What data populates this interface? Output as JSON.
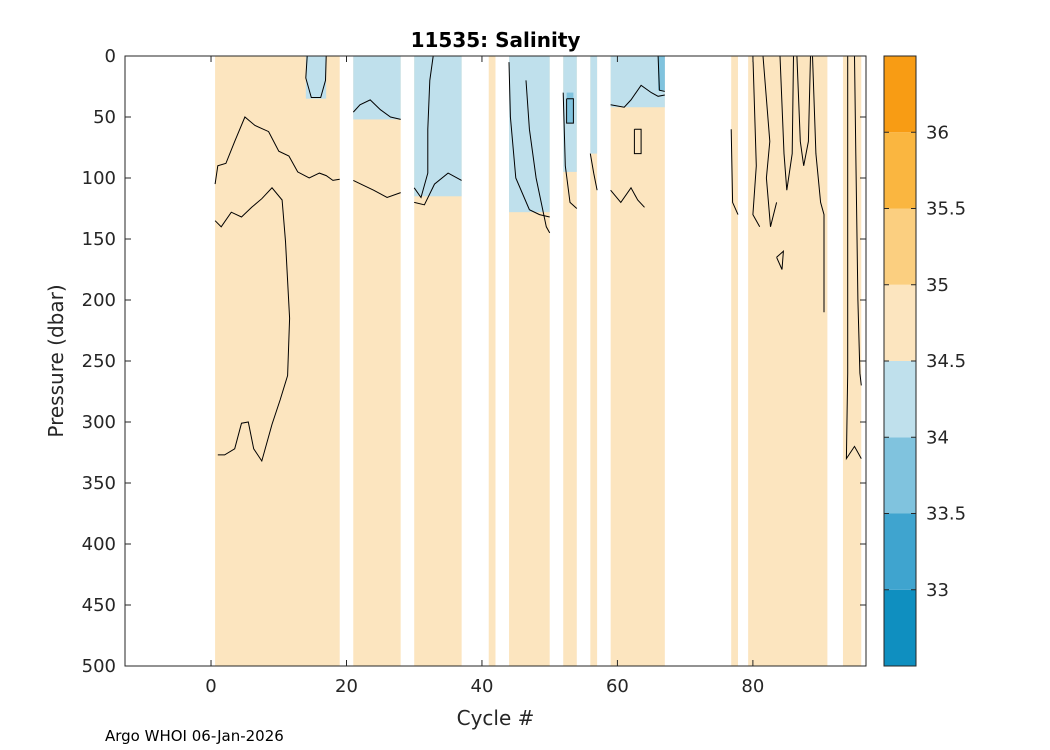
{
  "chart_data": {
    "type": "heatmap",
    "title": "11535:  Salinity",
    "xlabel": "Cycle #",
    "ylabel": "Pressure (dbar)",
    "xlim": [
      -12.7,
      96.7
    ],
    "ylim": [
      0,
      500
    ],
    "y_reversed": true,
    "xticks": [
      0,
      20,
      40,
      60,
      80
    ],
    "yticks": [
      0,
      50,
      100,
      150,
      200,
      250,
      300,
      350,
      400,
      450,
      500
    ],
    "footer": "Argo WHOI 06-Jan-2026",
    "colorbar": {
      "range": [
        32.5,
        36.5
      ],
      "ticks": [
        33,
        33.5,
        34,
        34.5,
        35,
        35.5,
        36
      ],
      "levels": [
        {
          "from": 32.5,
          "to": 33.0,
          "color": "#0f8fc0"
        },
        {
          "from": 33.0,
          "to": 33.5,
          "color": "#3fa4cf"
        },
        {
          "from": 33.5,
          "to": 34.0,
          "color": "#80c3de"
        },
        {
          "from": 34.0,
          "to": 34.5,
          "color": "#bfe0ec"
        },
        {
          "from": 34.5,
          "to": 35.0,
          "color": "#fce5bf"
        },
        {
          "from": 35.0,
          "to": 35.5,
          "color": "#fbcf80"
        },
        {
          "from": 35.5,
          "to": 36.0,
          "color": "#fab640"
        },
        {
          "from": 36.0,
          "to": 36.5,
          "color": "#f89c14"
        }
      ]
    },
    "data_segments": [
      {
        "x0": 0.6,
        "x1": 19.0,
        "pmax": 500
      },
      {
        "x0": 21.0,
        "x1": 28.0,
        "pmax": 500
      },
      {
        "x0": 30.0,
        "x1": 37.0,
        "pmax": 500
      },
      {
        "x0": 41.0,
        "x1": 42.0,
        "pmax": 500
      },
      {
        "x0": 44.0,
        "x1": 50.0,
        "pmax": 500
      },
      {
        "x0": 52.0,
        "x1": 54.0,
        "pmax": 500
      },
      {
        "x0": 56.0,
        "x1": 57.0,
        "pmax": 500
      },
      {
        "x0": 59.0,
        "x1": 67.0,
        "pmax": 500
      },
      {
        "x0": 76.8,
        "x1": 77.8,
        "pmax": 500
      },
      {
        "x0": 79.3,
        "x1": 91.0,
        "pmax": 500
      },
      {
        "x0": 93.3,
        "x1": 96.0,
        "pmax": 500
      }
    ],
    "fresh_regions": [
      {
        "x0": 14.0,
        "x1": 17.0,
        "p_top": 0,
        "p_bottom": 35,
        "salinity": 34.3
      },
      {
        "x0": 21.0,
        "x1": 28.0,
        "p_top": 0,
        "p_bottom": 52,
        "salinity": 34.3
      },
      {
        "x0": 30.0,
        "x1": 37.0,
        "p_top": 0,
        "p_bottom": 115,
        "salinity": 34.3
      },
      {
        "x0": 44.0,
        "x1": 50.0,
        "p_top": 0,
        "p_bottom": 128,
        "salinity": 34.3
      },
      {
        "x0": 52.0,
        "x1": 54.0,
        "p_top": 0,
        "p_bottom": 95,
        "salinity": 34.3
      },
      {
        "x0": 56.0,
        "x1": 57.0,
        "p_top": 0,
        "p_bottom": 80,
        "salinity": 34.3
      },
      {
        "x0": 59.0,
        "x1": 67.0,
        "p_top": 0,
        "p_bottom": 42,
        "salinity": 34.3
      },
      {
        "x0": 52.5,
        "x1": 53.5,
        "p_top": 30,
        "p_bottom": 55,
        "salinity": 33.8
      },
      {
        "x0": 66.0,
        "x1": 67.0,
        "p_top": 0,
        "p_bottom": 28,
        "salinity": 33.8
      }
    ],
    "contours_34_5": [
      [
        [
          0.6,
          105
        ],
        [
          1.0,
          90
        ],
        [
          2.2,
          88
        ],
        [
          3.5,
          70
        ],
        [
          5.0,
          50
        ],
        [
          6.5,
          57
        ],
        [
          8.5,
          62
        ],
        [
          10.0,
          78
        ],
        [
          11.5,
          82
        ],
        [
          12.8,
          95
        ],
        [
          14.5,
          100
        ],
        [
          16.0,
          96
        ],
        [
          17.0,
          98
        ],
        [
          18.0,
          102
        ],
        [
          19.0,
          101
        ]
      ],
      [
        [
          0.6,
          135
        ],
        [
          1.5,
          140
        ],
        [
          3.0,
          128
        ],
        [
          4.5,
          132
        ],
        [
          6.0,
          124
        ],
        [
          7.5,
          117
        ],
        [
          9.0,
          108
        ],
        [
          10.5,
          118
        ],
        [
          11.0,
          152
        ],
        [
          11.6,
          215
        ],
        [
          11.3,
          262
        ],
        [
          10.2,
          282
        ],
        [
          9.0,
          302
        ],
        [
          7.5,
          332
        ],
        [
          6.3,
          322
        ],
        [
          5.5,
          300
        ],
        [
          4.5,
          301
        ],
        [
          3.5,
          322
        ],
        [
          2.0,
          327
        ],
        [
          1.0,
          327
        ]
      ],
      [
        [
          14.2,
          0
        ],
        [
          14.0,
          18
        ],
        [
          14.8,
          34
        ],
        [
          16.2,
          34
        ],
        [
          16.9,
          20
        ],
        [
          17.0,
          0
        ]
      ],
      [
        [
          21.0,
          46
        ],
        [
          22.0,
          40
        ],
        [
          23.5,
          36
        ],
        [
          25.0,
          44
        ],
        [
          26.5,
          50
        ],
        [
          28.0,
          52
        ]
      ],
      [
        [
          21.0,
          102
        ],
        [
          22.5,
          106
        ],
        [
          24.0,
          110
        ],
        [
          26.0,
          116
        ],
        [
          28.0,
          112
        ]
      ],
      [
        [
          30.0,
          108
        ],
        [
          31.0,
          116
        ],
        [
          32.0,
          96
        ],
        [
          32.0,
          60
        ],
        [
          32.3,
          20
        ],
        [
          32.8,
          0
        ]
      ],
      [
        [
          30.0,
          120
        ],
        [
          31.5,
          122
        ],
        [
          33.0,
          105
        ],
        [
          35.0,
          96
        ],
        [
          37.0,
          102
        ]
      ],
      [
        [
          44.0,
          5
        ],
        [
          44.2,
          50
        ],
        [
          45.0,
          100
        ],
        [
          47.0,
          126
        ],
        [
          48.5,
          130
        ],
        [
          50.0,
          132
        ]
      ],
      [
        [
          46.5,
          20
        ],
        [
          47.0,
          60
        ],
        [
          48.0,
          100
        ],
        [
          49.5,
          140
        ],
        [
          50.0,
          145
        ]
      ],
      [
        [
          52.0,
          30
        ],
        [
          52.3,
          90
        ],
        [
          53.0,
          120
        ],
        [
          54.0,
          125
        ]
      ],
      [
        [
          52.5,
          35
        ],
        [
          53.5,
          35
        ],
        [
          53.5,
          55
        ],
        [
          52.5,
          55
        ],
        [
          52.5,
          35
        ]
      ],
      [
        [
          56.0,
          80
        ],
        [
          56.5,
          96
        ],
        [
          57.0,
          110
        ]
      ],
      [
        [
          59.0,
          40
        ],
        [
          61.0,
          42
        ],
        [
          62.0,
          36
        ],
        [
          63.5,
          24
        ],
        [
          65.0,
          30
        ],
        [
          66.0,
          33
        ],
        [
          67.0,
          32
        ]
      ],
      [
        [
          59.0,
          110
        ],
        [
          60.5,
          120
        ],
        [
          62.0,
          108
        ],
        [
          63.0,
          118
        ],
        [
          64.0,
          124
        ]
      ],
      [
        [
          62.5,
          60
        ],
        [
          63.5,
          60
        ],
        [
          63.5,
          80
        ],
        [
          62.5,
          80
        ],
        [
          62.5,
          60
        ]
      ],
      [
        [
          66.0,
          0
        ],
        [
          66.2,
          28
        ],
        [
          67.0,
          29
        ]
      ],
      [
        [
          76.8,
          60
        ],
        [
          77.0,
          120
        ],
        [
          77.8,
          130
        ]
      ],
      [
        [
          80.0,
          0
        ],
        [
          80.5,
          90
        ],
        [
          80.0,
          130
        ],
        [
          81.0,
          140
        ]
      ],
      [
        [
          81.5,
          0
        ],
        [
          82.5,
          70
        ],
        [
          82.0,
          100
        ],
        [
          82.6,
          140
        ],
        [
          83.5,
          120
        ]
      ],
      [
        [
          84.0,
          0
        ],
        [
          84.6,
          80
        ],
        [
          85.0,
          110
        ],
        [
          85.8,
          80
        ],
        [
          86.0,
          0
        ]
      ],
      [
        [
          86.5,
          0
        ],
        [
          87.0,
          70
        ],
        [
          87.5,
          90
        ],
        [
          88.2,
          70
        ],
        [
          88.5,
          0
        ]
      ],
      [
        [
          88.8,
          0
        ],
        [
          89.3,
          80
        ],
        [
          90.0,
          120
        ],
        [
          90.5,
          130
        ],
        [
          90.5,
          210
        ]
      ],
      [
        [
          83.5,
          165
        ],
        [
          84.5,
          160
        ],
        [
          84.3,
          175
        ],
        [
          83.5,
          165
        ]
      ],
      [
        [
          94.0,
          0
        ],
        [
          94.0,
          260
        ],
        [
          93.8,
          330
        ],
        [
          95.0,
          320
        ],
        [
          96.0,
          330
        ]
      ],
      [
        [
          95.0,
          0
        ],
        [
          95.2,
          80
        ],
        [
          95.5,
          200
        ],
        [
          95.8,
          260
        ],
        [
          96.0,
          270
        ]
      ]
    ]
  }
}
